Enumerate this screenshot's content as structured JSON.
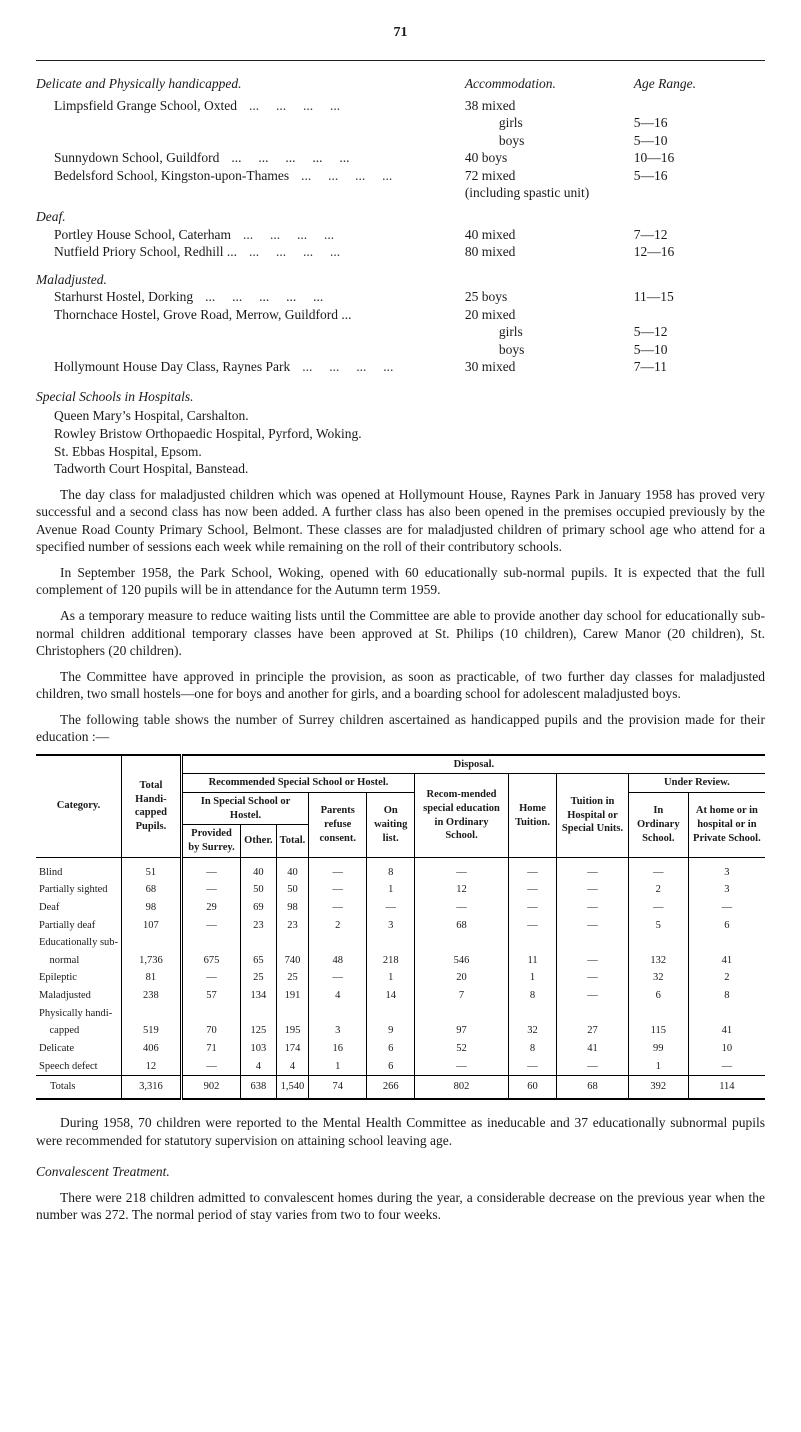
{
  "page_number": "71",
  "head": {
    "col1": "Delicate and Physically handicapped.",
    "col2": "Accommodation.",
    "col3": "Age Range."
  },
  "delicate": [
    {
      "name": "Limpsfield Grange School, Oxted",
      "accom": "38 mixed",
      "ages": [
        {
          "label": "girls",
          "range": "5—16"
        },
        {
          "label": "boys",
          "range": "5—10"
        }
      ]
    },
    {
      "name": "Sunnydown School, Guildford",
      "accom": "40 boys",
      "ages": [
        {
          "label": "",
          "range": "10—16"
        }
      ]
    },
    {
      "name": "Bedelsford School, Kingston-upon-Thames",
      "accom": "72 mixed",
      "ages": [
        {
          "label": "",
          "range": "5—16"
        }
      ],
      "note": "(including spastic unit)"
    }
  ],
  "deaf_head": "Deaf.",
  "deaf": [
    {
      "name": "Portley House School, Caterham",
      "accom": "40 mixed",
      "range": "7—12"
    },
    {
      "name": "Nutfield Priory School, Redhill ...",
      "accom": "80 mixed",
      "range": "12—16"
    }
  ],
  "malad_head": "Maladjusted.",
  "maladjusted": [
    {
      "name": "Starhurst Hostel, Dorking",
      "accom": "25 boys",
      "range": "11—15"
    },
    {
      "name": "Thornchace Hostel, Grove Road, Merrow, Guildford ...",
      "accom": "20 mixed",
      "sub": [
        {
          "label": "girls",
          "range": "5—12"
        },
        {
          "label": "boys",
          "range": "5—10"
        }
      ]
    },
    {
      "name": "Hollymount House Day Class, Raynes Park",
      "accom": "30 mixed",
      "range": "7—11"
    }
  ],
  "special_head": "Special Schools in Hospitals.",
  "special_list": [
    "Queen Mary’s Hospital, Carshalton.",
    "Rowley Bristow Orthopaedic Hospital, Pyrford, Woking.",
    "St. Ebbas Hospital, Epsom.",
    "Tadworth Court Hospital, Banstead."
  ],
  "paras": [
    "The day class for maladjusted children which was opened at Hollymount House, Raynes Park in January 1958 has proved very successful and a second class has now been added. A further class has also been opened in the premises occupied previously by the Avenue Road County Primary School, Belmont. These classes are for maladjusted children of primary school age who attend for a specified number of sessions each week while remaining on the roll of their contributory schools.",
    "In September 1958, the Park School, Woking, opened with 60 educationally sub-normal pupils. It is expected that the full complement of 120 pupils will be in attendance for the Autumn term 1959.",
    "As a temporary measure to reduce waiting lists until the Committee are able to provide another day school for educationally sub-normal children additional temporary classes have been approved at St. Philips (10 children), Carew Manor (20 children), St. Christophers (20 children).",
    "The Committee have approved in principle the provision, as soon as practicable, of two further day classes for maladjusted children, two small hostels—one for boys and another for girls, and a boarding school for adolescent maladjusted boys.",
    "The following table shows the number of Surrey children ascertained as handicapped pupils and the provision made for their education :—"
  ],
  "table": {
    "disposal": "Disposal.",
    "category": "Category.",
    "total": "Total Handi-capped Pupils.",
    "rec": "Recommended Special School or Hostel.",
    "inspec": "In Special School or Hostel.",
    "provided": "Provided by Surrey.",
    "other": "Other.",
    "totalcol": "Total.",
    "parents": "Parents refuse consent.",
    "onwait": "On waiting list.",
    "recom": "Recom-mended special education in Ordinary School.",
    "home": "Home Tuition.",
    "tuition": "Tuition in Hospital or Special Units.",
    "under": "Under Review.",
    "inord": "In Ordinary School.",
    "athome": "At home or in hospital or in Private School.",
    "rows": [
      {
        "label": "Blind",
        "vals": [
          "51",
          "—",
          "40",
          "40",
          "—",
          "8",
          "—",
          "—",
          "—",
          "—",
          "3"
        ]
      },
      {
        "label": "Partially sighted",
        "vals": [
          "68",
          "—",
          "50",
          "50",
          "—",
          "1",
          "12",
          "—",
          "—",
          "2",
          "3"
        ]
      },
      {
        "label": "Deaf",
        "vals": [
          "98",
          "29",
          "69",
          "98",
          "—",
          "—",
          "—",
          "—",
          "—",
          "—",
          "—"
        ]
      },
      {
        "label": "Partially deaf",
        "vals": [
          "107",
          "—",
          "23",
          "23",
          "2",
          "3",
          "68",
          "—",
          "—",
          "5",
          "6"
        ]
      },
      {
        "label": "Educationally sub-",
        "vals": [
          "",
          "",
          "",
          "",
          "",
          "",
          "",
          "",
          "",
          "",
          ""
        ],
        "nobord": true
      },
      {
        "label": "  normal",
        "vals": [
          "1,736",
          "675",
          "65",
          "740",
          "48",
          "218",
          "546",
          "11",
          "—",
          "132",
          "41"
        ]
      },
      {
        "label": "Epileptic",
        "vals": [
          "81",
          "—",
          "25",
          "25",
          "—",
          "1",
          "20",
          "1",
          "—",
          "32",
          "2"
        ]
      },
      {
        "label": "Maladjusted",
        "vals": [
          "238",
          "57",
          "134",
          "191",
          "4",
          "14",
          "7",
          "8",
          "—",
          "6",
          "8"
        ]
      },
      {
        "label": "Physically handi-",
        "vals": [
          "",
          "",
          "",
          "",
          "",
          "",
          "",
          "",
          "",
          "",
          ""
        ],
        "nobord": true
      },
      {
        "label": "  capped",
        "vals": [
          "519",
          "70",
          "125",
          "195",
          "3",
          "9",
          "97",
          "32",
          "27",
          "115",
          "41"
        ]
      },
      {
        "label": "Delicate",
        "vals": [
          "406",
          "71",
          "103",
          "174",
          "16",
          "6",
          "52",
          "8",
          "41",
          "99",
          "10"
        ]
      },
      {
        "label": "Speech defect",
        "vals": [
          "12",
          "—",
          "4",
          "4",
          "1",
          "6",
          "—",
          "—",
          "—",
          "1",
          "—"
        ]
      }
    ],
    "totals": {
      "label": "Totals",
      "vals": [
        "3,316",
        "902",
        "638",
        "1,540",
        "74",
        "266",
        "802",
        "60",
        "68",
        "392",
        "114"
      ]
    }
  },
  "after_table": "During 1958, 70 children were reported to the Mental Health Committee as ineducable and 37 educationally subnormal pupils were recommended for statutory supervision on attaining school leaving age.",
  "conval_head": "Convalescent Treatment.",
  "conval_para": "There were 218 children admitted to convalescent homes during the year, a considerable decrease on the previous year when the number was 272. The normal period of stay varies from two to four weeks."
}
